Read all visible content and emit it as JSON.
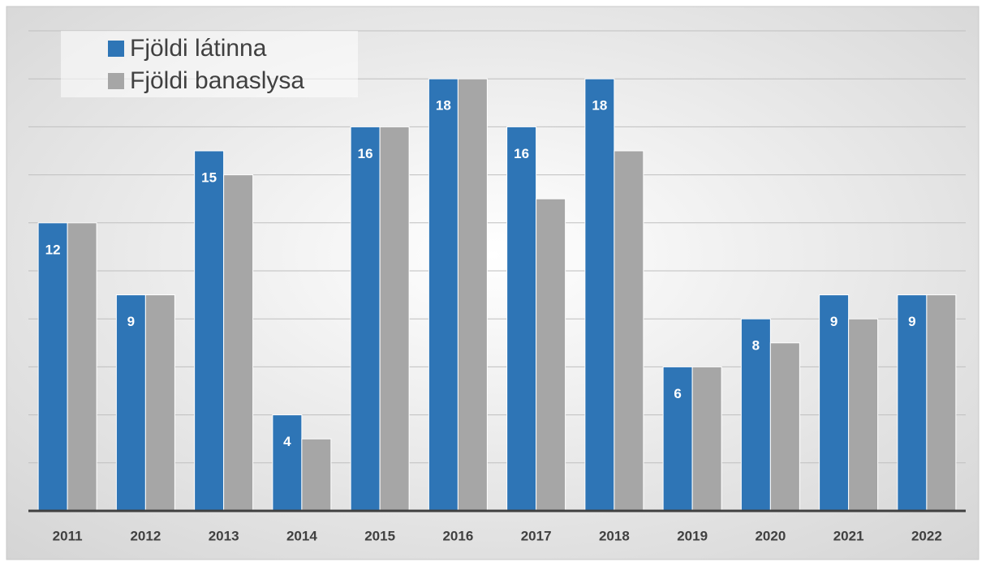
{
  "chart_data": {
    "type": "bar",
    "categories": [
      "2011",
      "2012",
      "2013",
      "2014",
      "2015",
      "2016",
      "2017",
      "2018",
      "2019",
      "2020",
      "2021",
      "2022"
    ],
    "series": [
      {
        "name": "Fjöldi látinna",
        "color": "#2e75b6",
        "data_labels": true,
        "values": [
          12,
          9,
          15,
          4,
          16,
          18,
          16,
          18,
          6,
          8,
          9,
          9
        ]
      },
      {
        "name": "Fjöldi banaslysa",
        "color": "#a6a6a6",
        "data_labels": false,
        "values": [
          12,
          9,
          14,
          3,
          16,
          18,
          13,
          15,
          6,
          7,
          8,
          9
        ]
      }
    ],
    "ylim": [
      0,
      20
    ],
    "yticks": [
      2,
      4,
      6,
      8,
      10,
      12,
      14,
      16,
      18,
      20
    ],
    "grid": true,
    "legend": "top-left"
  }
}
